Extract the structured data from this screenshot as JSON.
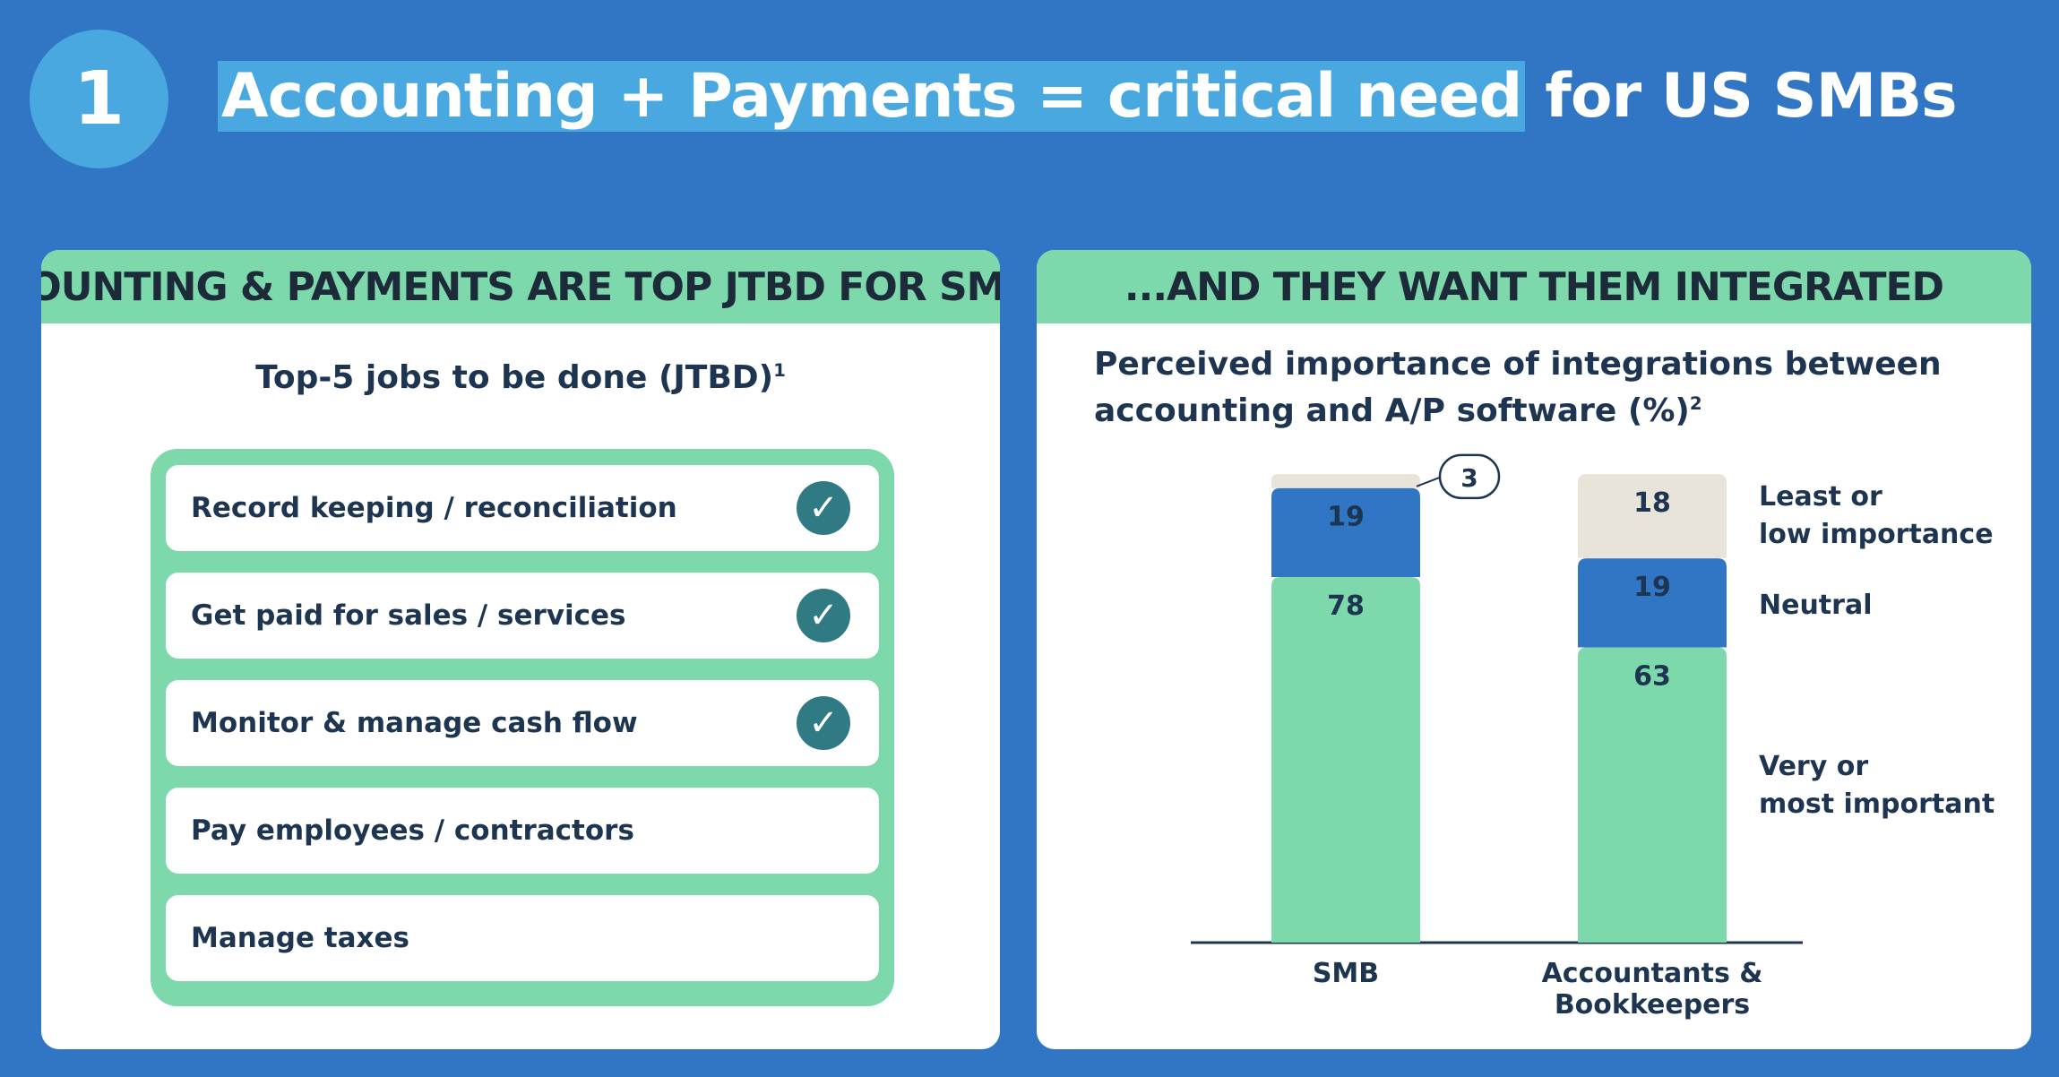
{
  "badge": "1",
  "title": {
    "highlight": "Accounting + Payments = critical need",
    "rest": "for US SMBs"
  },
  "left_panel": {
    "header": "ACCOUNTING & PAYMENTS ARE TOP JTBD FOR SMBs...",
    "subtitle": "Top-5 jobs to be done (JTBD)",
    "subtitle_sup": "1",
    "jobs": [
      {
        "label": "Record keeping / reconciliation",
        "checked": true
      },
      {
        "label": "Get paid for sales / services",
        "checked": true
      },
      {
        "label": "Monitor & manage cash flow",
        "checked": true
      },
      {
        "label": "Pay employees / contractors",
        "checked": false
      },
      {
        "label": "Manage taxes",
        "checked": false
      }
    ]
  },
  "right_panel": {
    "header": "...AND THEY WANT THEM INTEGRATED",
    "subtitle_line1": "Perceived importance of integrations between",
    "subtitle_line2": "accounting and A/P software (%)",
    "subtitle_sup": "2"
  },
  "chart_data": {
    "type": "bar",
    "stacked": true,
    "categories": [
      "SMB",
      "Accountants & Bookkeepers"
    ],
    "category_lines": [
      [
        "SMB"
      ],
      [
        "Accountants &",
        "Bookkeepers"
      ]
    ],
    "series": [
      {
        "name": "Very or most important",
        "name_lines": [
          "Very or",
          "most important"
        ],
        "values": [
          78,
          63
        ],
        "color": "#7dd9ac"
      },
      {
        "name": "Neutral",
        "name_lines": [
          "Neutral"
        ],
        "values": [
          19,
          19
        ],
        "color": "#3176c4"
      },
      {
        "name": "Least or low importance",
        "name_lines": [
          "Least or",
          "low importance"
        ],
        "values": [
          3,
          18
        ],
        "color": "#e9e4da"
      }
    ],
    "ylim": [
      0,
      100
    ],
    "legend": "right",
    "grid": false
  },
  "colors": {
    "background": "#3176c4",
    "accent_green": "#7dd9ac",
    "dark_text": "#1d3550",
    "check": "#2f7a83"
  }
}
